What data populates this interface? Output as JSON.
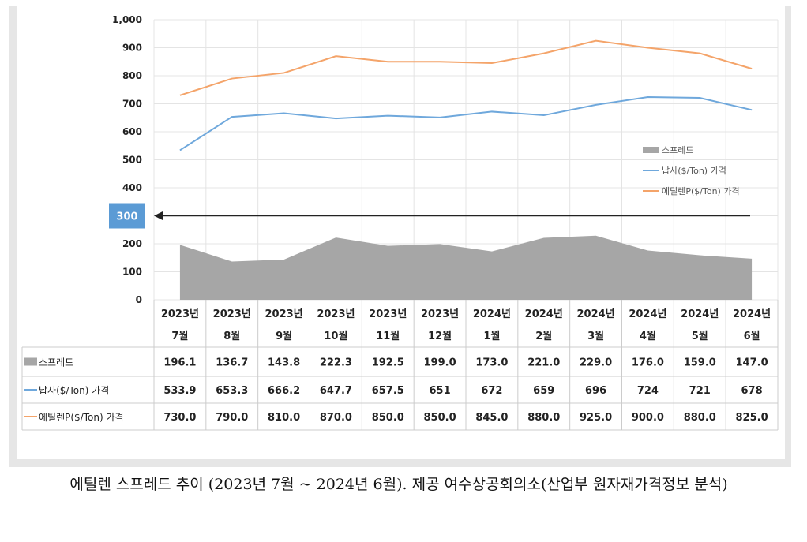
{
  "chart_data": {
    "type": "line+area+table",
    "categories": [
      [
        "2023년",
        "7월"
      ],
      [
        "2023년",
        "8월"
      ],
      [
        "2023년",
        "9월"
      ],
      [
        "2023년",
        "10월"
      ],
      [
        "2023년",
        "11월"
      ],
      [
        "2023년",
        "12월"
      ],
      [
        "2024년",
        "1월"
      ],
      [
        "2024년",
        "2월"
      ],
      [
        "2024년",
        "3월"
      ],
      [
        "2024년",
        "4월"
      ],
      [
        "2024년",
        "5월"
      ],
      [
        "2024년",
        "6월"
      ]
    ],
    "ylim": [
      0,
      1000
    ],
    "yticks": [
      "0",
      "100",
      "200",
      "300",
      "400",
      "500",
      "600",
      "700",
      "800",
      "900",
      "1,000"
    ],
    "grid": true,
    "legend_position": "right",
    "series": [
      {
        "name": "스프레드",
        "kind": "area",
        "color": "#a6a6a6",
        "values": [
          196.1,
          136.7,
          143.8,
          222.3,
          192.5,
          199.0,
          173.0,
          221.0,
          229.0,
          176.0,
          159.0,
          147.0
        ],
        "labels": [
          "196.1",
          "136.7",
          "143.8",
          "222.3",
          "192.5",
          "199.0",
          "173.0",
          "221.0",
          "229.0",
          "176.0",
          "159.0",
          "147.0"
        ]
      },
      {
        "name": "납사($/Ton) 가격",
        "kind": "line",
        "color": "#6fa8dc",
        "values": [
          533.9,
          653.3,
          666.2,
          647.7,
          657.5,
          651,
          672,
          659,
          696,
          724,
          721,
          678
        ],
        "labels": [
          "533.9",
          "653.3",
          "666.2",
          "647.7",
          "657.5",
          "651",
          "672",
          "659",
          "696",
          "724",
          "721",
          "678"
        ]
      },
      {
        "name": "에틸렌P($/Ton) 가격",
        "kind": "line",
        "color": "#f4a46a",
        "values": [
          730.0,
          790.0,
          810.0,
          870.0,
          850.0,
          850.0,
          845.0,
          880.0,
          925.0,
          900.0,
          880.0,
          825.0
        ],
        "labels": [
          "730.0",
          "790.0",
          "810.0",
          "870.0",
          "850.0",
          "850.0",
          "845.0",
          "880.0",
          "925.0",
          "900.0",
          "880.0",
          "825.0"
        ]
      }
    ],
    "annotation": {
      "label": "300",
      "value": 300,
      "color": "#5b9bd5"
    }
  },
  "caption": "에틸렌 스프레드 추이 (2023년 7월 ~ 2024년 6월). 제공 여수상공회의소(산업부 원자재가격정보 분석)"
}
